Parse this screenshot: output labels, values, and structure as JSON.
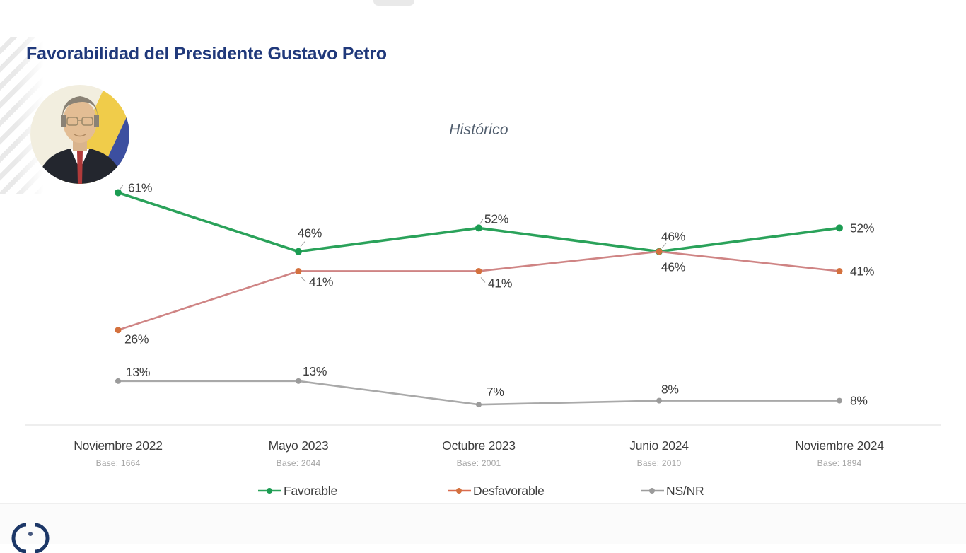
{
  "header": {
    "title": "Favorabilidad del Presidente Gustavo Petro"
  },
  "avatar": {
    "description": "Gustavo Petro portrait with Colombian flag",
    "flag_colors": {
      "yellow": "#f0cc4a",
      "blue": "#3c4fa0",
      "red": "#a93a3e"
    }
  },
  "chart_data": {
    "type": "line",
    "title": "Histórico",
    "categories": [
      "Noviembre 2022",
      "Mayo 2023",
      "Octubre 2023",
      "Junio 2024",
      "Noviembre 2024"
    ],
    "bases": [
      "Base: 1664",
      "Base: 2044",
      "Base: 2001",
      "Base: 2010",
      "Base: 1894"
    ],
    "series": [
      {
        "name": "Favorable",
        "values": [
          61,
          46,
          52,
          46,
          52
        ],
        "line_color": "#2aa25a",
        "point_color": "#1b9c52",
        "legend_color": "#2aa25a"
      },
      {
        "name": "Desfavorable",
        "values": [
          26,
          41,
          41,
          46,
          41
        ],
        "line_color": "#cf8484",
        "point_color": "#d4713e",
        "legend_color": "#d96b4f"
      },
      {
        "name": "NS/NR",
        "values": [
          13,
          13,
          7,
          8,
          8
        ],
        "line_color": "#a9a9a9",
        "point_color": "#9b9b9b",
        "legend_color": "#9d9d9d"
      }
    ],
    "value_suffix": "%",
    "ylim": [
      0,
      70
    ],
    "grid": false,
    "legend_position": "bottom",
    "label_color": "#3d3d3d",
    "axis_color": "#dcdcdc",
    "category_color": "#3d3d3d",
    "base_color": "#a6a6a6",
    "leader_color": "#9f9f9f"
  },
  "footer": {
    "logo_icon": "cnc-logo"
  }
}
